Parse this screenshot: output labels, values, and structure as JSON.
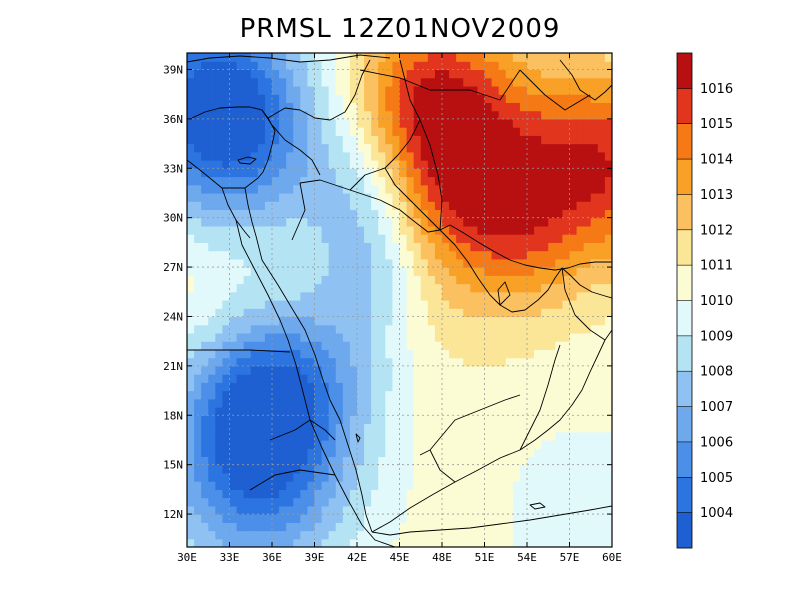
{
  "title": "PRMSL 12Z01NOV2009",
  "map": {
    "variable": "PRMSL",
    "lon_range": [
      30,
      60
    ],
    "lat_range": [
      10,
      40
    ],
    "lon_ticks": [
      {
        "value": 30,
        "label": "30E"
      },
      {
        "value": 33,
        "label": "33E"
      },
      {
        "value": 36,
        "label": "36E"
      },
      {
        "value": 39,
        "label": "39E"
      },
      {
        "value": 42,
        "label": "42E"
      },
      {
        "value": 45,
        "label": "45E"
      },
      {
        "value": 48,
        "label": "48E"
      },
      {
        "value": 51,
        "label": "51E"
      },
      {
        "value": 54,
        "label": "54E"
      },
      {
        "value": 57,
        "label": "57E"
      },
      {
        "value": 60,
        "label": "60E"
      }
    ],
    "lat_ticks": [
      {
        "value": 12,
        "label": "12N"
      },
      {
        "value": 15,
        "label": "15N"
      },
      {
        "value": 18,
        "label": "18N"
      },
      {
        "value": 21,
        "label": "21N"
      },
      {
        "value": 24,
        "label": "24N"
      },
      {
        "value": 27,
        "label": "27N"
      },
      {
        "value": 30,
        "label": "30N"
      },
      {
        "value": 33,
        "label": "33N"
      },
      {
        "value": 36,
        "label": "36N"
      },
      {
        "value": 39,
        "label": "39N"
      }
    ],
    "grid": true,
    "pressure_centers": [
      {
        "lon": 31.5,
        "lat": 37.6,
        "value": 1006.5,
        "spread": 4.0
      },
      {
        "lon": 33.5,
        "lat": 35.2,
        "value": 1005.6,
        "spread": 4.5
      },
      {
        "lon": 35.0,
        "lat": 14.8,
        "value": 1004.6,
        "spread": 4.8
      },
      {
        "lon": 35.5,
        "lat": 19.0,
        "value": 1006.3,
        "spread": 3.5
      },
      {
        "lon": 42.5,
        "lat": 31.5,
        "value": 1007.7,
        "spread": 3.0
      },
      {
        "lon": 41.0,
        "lat": 22.0,
        "value": 1008.5,
        "spread": 3.5
      },
      {
        "lon": 43.0,
        "lat": 27.0,
        "value": 1008.6,
        "spread": 2.5
      },
      {
        "lon": 49.0,
        "lat": 33.6,
        "value": 1016.3,
        "spread": 4.5
      },
      {
        "lon": 47.0,
        "lat": 38.5,
        "value": 1013.2,
        "spread": 3.5
      },
      {
        "lon": 59.5,
        "lat": 33.3,
        "value": 1015.5,
        "spread": 4.0
      },
      {
        "lon": 53.5,
        "lat": 29.0,
        "value": 1013.0,
        "spread": 3.5
      },
      {
        "lon": 47.5,
        "lat": 23.0,
        "value": 1011.0,
        "spread": 4.0
      },
      {
        "lon": 45.0,
        "lat": 14.0,
        "value": 1010.5,
        "spread": 4.0
      },
      {
        "lon": 58.0,
        "lat": 12.0,
        "value": 1009.0,
        "spread": 3.5
      },
      {
        "lon": 30.5,
        "lat": 26.0,
        "value": 1011.0,
        "spread": 2.5
      }
    ],
    "base_value": 1010.5
  },
  "colorbar": {
    "levels": [
      1004,
      1005,
      1006,
      1007,
      1008,
      1009,
      1010,
      1011,
      1012,
      1013,
      1014,
      1015,
      1016
    ],
    "labels": [
      "1004",
      "1005",
      "1006",
      "1007",
      "1008",
      "1009",
      "1010",
      "1011",
      "1012",
      "1013",
      "1014",
      "1015",
      "1016"
    ],
    "colors": [
      "#1e5fd2",
      "#2c74e0",
      "#4b8fe8",
      "#6ea9ee",
      "#8fc2f2",
      "#b4e4f3",
      "#e1f9fb",
      "#fcfcd4",
      "#fbe597",
      "#fbc160",
      "#f9a027",
      "#f57a16",
      "#e1351e",
      "#b81010"
    ]
  }
}
